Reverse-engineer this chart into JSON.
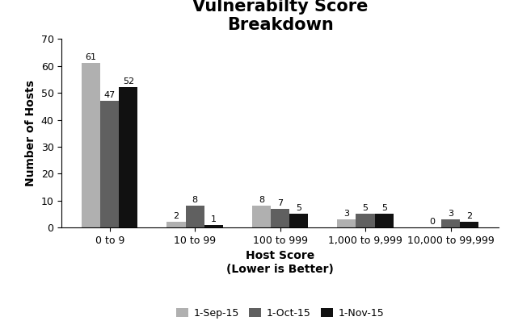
{
  "title": "Vulnerabilty Score\nBreakdown",
  "xlabel": "Host Score\n(Lower is Better)",
  "ylabel": "Number of Hosts",
  "categories": [
    "0 to 9",
    "10 to 99",
    "100 to 999",
    "1,000 to 9,999",
    "10,000 to 99,999"
  ],
  "series": [
    {
      "label": "1-Sep-15",
      "values": [
        61,
        2,
        8,
        3,
        0
      ],
      "color": "#b0b0b0"
    },
    {
      "label": "1-Oct-15",
      "values": [
        47,
        8,
        7,
        5,
        3
      ],
      "color": "#606060"
    },
    {
      "label": "1-Nov-15",
      "values": [
        52,
        1,
        5,
        5,
        2
      ],
      "color": "#111111"
    }
  ],
  "ylim": [
    0,
    70
  ],
  "yticks": [
    0,
    10,
    20,
    30,
    40,
    50,
    60,
    70
  ],
  "bar_width": 0.22,
  "title_fontsize": 15,
  "label_fontsize": 10,
  "tick_fontsize": 9,
  "legend_fontsize": 9,
  "annotation_fontsize": 8,
  "background_color": "#ffffff"
}
